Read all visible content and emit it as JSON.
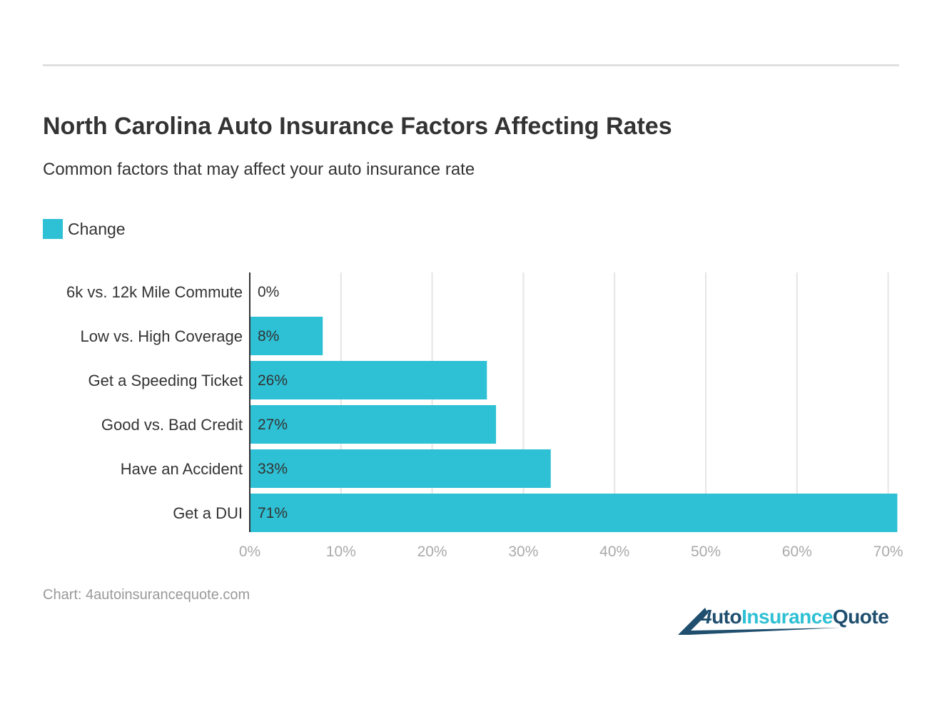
{
  "title": "North Carolina Auto Insurance Factors Affecting Rates",
  "subtitle": "Common factors that may affect your auto insurance rate",
  "source": "Chart: 4autoinsurancequote.com",
  "logo_text": "4AutoInsuranceQuote",
  "colors": {
    "bar": "#2ec0d4",
    "grid": "#e5e5e5",
    "text": "#333333",
    "tick": "#aaaaaa",
    "logo_dark": "#1f4e6e",
    "logo_light": "#2ec0d4"
  },
  "chart_data": {
    "type": "bar",
    "orientation": "horizontal",
    "title": "North Carolina Auto Insurance Factors Affecting Rates",
    "subtitle": "Common factors that may affect your auto insurance rate",
    "categories": [
      "6k vs. 12k Mile Commute",
      "Low vs. High Coverage",
      "Get a Speeding Ticket",
      "Good vs. Bad Credit",
      "Have an Accident",
      "Get a DUI"
    ],
    "series": [
      {
        "name": "Change",
        "values": [
          0,
          8,
          26,
          27,
          33,
          71
        ]
      }
    ],
    "data_labels": [
      "0%",
      "8%",
      "26%",
      "27%",
      "33%",
      "71%"
    ],
    "xlim": [
      0,
      71
    ],
    "xticks": [
      0,
      10,
      20,
      30,
      40,
      50,
      60,
      70
    ],
    "xtick_labels": [
      "0%",
      "10%",
      "20%",
      "30%",
      "40%",
      "50%",
      "60%",
      "70%"
    ],
    "grid": true,
    "legend": "top-left"
  }
}
